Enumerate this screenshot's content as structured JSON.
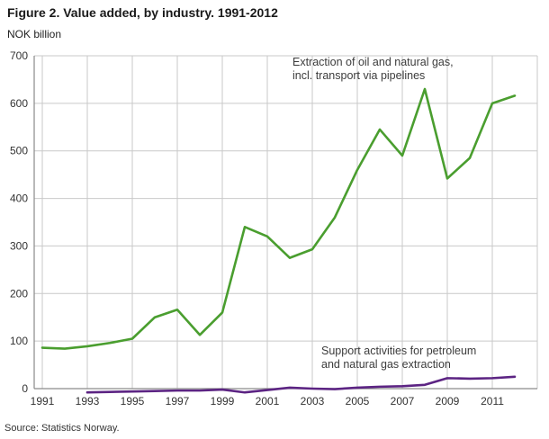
{
  "source": "Source: Statistics Norway.",
  "chart_data": {
    "type": "line",
    "title": "Figure 2. Value added, by industry. 1991-2012",
    "ylabel": "NOK billion",
    "xlabel": "",
    "ylim": [
      0,
      700
    ],
    "ytick_step": 100,
    "grid": true,
    "legend_position": "inline-annotations",
    "xticks": [
      1991,
      1993,
      1995,
      1997,
      1999,
      2001,
      2003,
      2005,
      2007,
      2009,
      2011
    ],
    "series": [
      {
        "name": "Extraction of oil and natural gas, incl. transport via pipelines",
        "color": "#4a9e2f",
        "x": [
          1991,
          1992,
          1993,
          1994,
          1995,
          1996,
          1997,
          1998,
          1999,
          2000,
          2001,
          2002,
          2003,
          2004,
          2005,
          2006,
          2007,
          2008,
          2009,
          2010,
          2011,
          2012
        ],
        "values": [
          86,
          84,
          89,
          96,
          105,
          150,
          166,
          113,
          160,
          340,
          320,
          275,
          293,
          360,
          460,
          545,
          490,
          630,
          442,
          485,
          600,
          616
        ]
      },
      {
        "name": "Support activities for petroleum and natural gas extraction",
        "color": "#5c2483",
        "x": [
          1993,
          1994,
          1995,
          1996,
          1997,
          1998,
          1999,
          2000,
          2001,
          2002,
          2003,
          2004,
          2005,
          2006,
          2007,
          2008,
          2009,
          2010,
          2011,
          2012
        ],
        "values": [
          -8,
          -7,
          -6,
          -5,
          -4,
          -4,
          -2,
          -8,
          -3,
          2,
          0,
          -1,
          2,
          4,
          5,
          8,
          22,
          21,
          22,
          25
        ]
      }
    ],
    "annotations": [
      {
        "lines": [
          "Extraction of oil and natural gas,",
          "incl. transport via pipelines"
        ],
        "x": 325,
        "y": 73
      },
      {
        "lines": [
          "Support activities for petroleum",
          "and natural gas extraction"
        ],
        "x": 357,
        "y": 394
      }
    ]
  }
}
